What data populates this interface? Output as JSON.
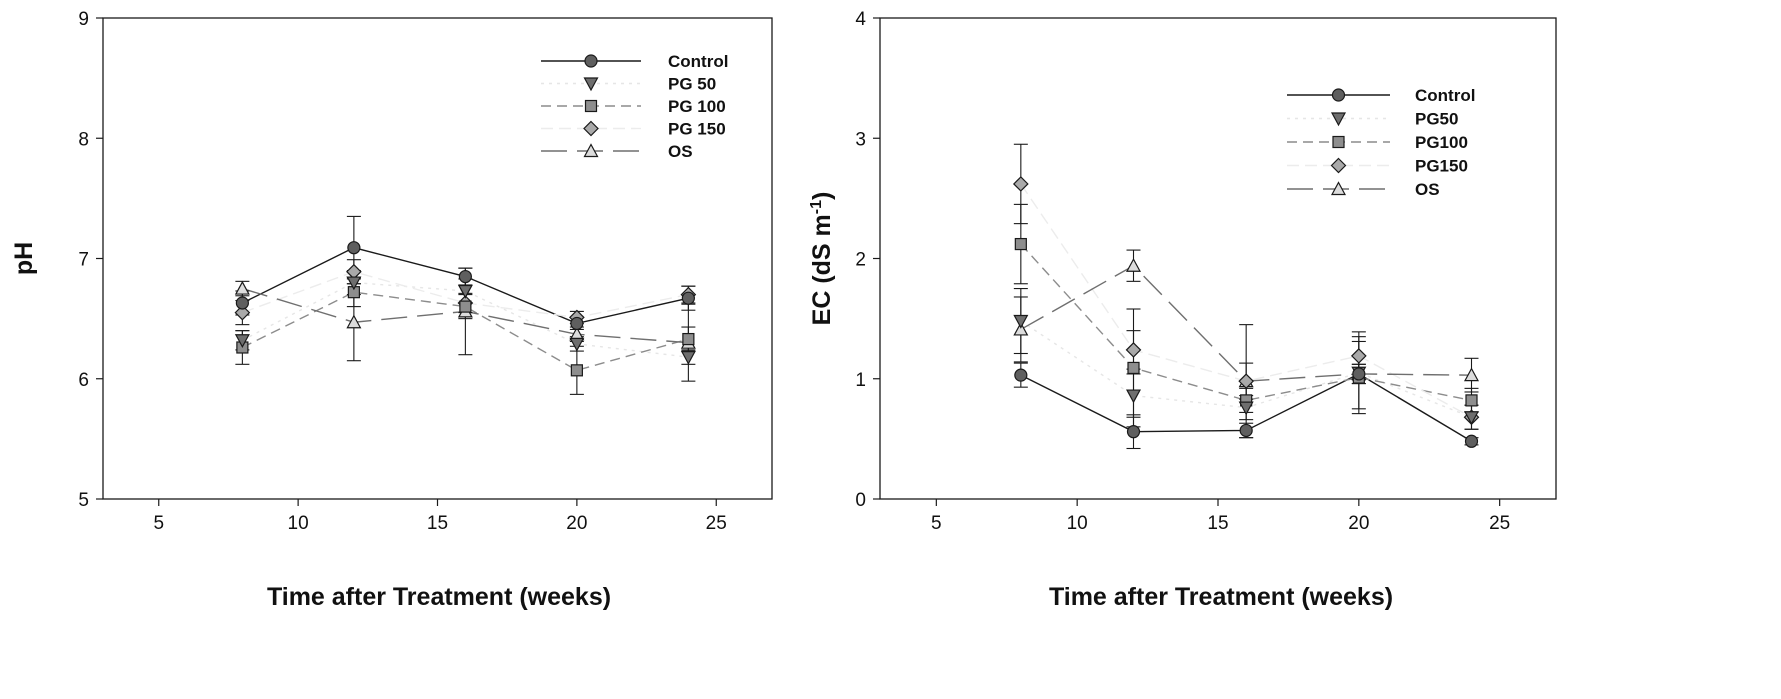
{
  "chart_data": [
    {
      "type": "line",
      "title": "",
      "xlabel": "Time after Treatment (weeks)",
      "ylabel": "pH",
      "ylabel_sup": "",
      "ylabel_suffix": "",
      "xlim": [
        3,
        27
      ],
      "ylim": [
        5,
        9
      ],
      "xticks": [
        "5",
        "10",
        "15",
        "20",
        "25"
      ],
      "yticks": [
        "5",
        "6",
        "7",
        "8",
        "9"
      ],
      "legend_position": "top-right",
      "x": [
        8,
        12,
        16,
        20,
        24
      ],
      "series": [
        {
          "name": "Control",
          "marker": "circle",
          "values": [
            6.63,
            7.09,
            6.85,
            6.46,
            6.67
          ],
          "err": [
            0.1,
            0.26,
            0.07,
            0.05,
            0.1
          ]
        },
        {
          "name": "PG 50",
          "marker": "triangle-down",
          "values": [
            6.32,
            6.8,
            6.73,
            6.29,
            6.18
          ],
          "err": [
            0.08,
            0.1,
            0.1,
            0.06,
            0.06
          ]
        },
        {
          "name": "PG 100",
          "marker": "square",
          "values": [
            6.26,
            6.72,
            6.6,
            6.07,
            6.33
          ],
          "err": [
            0.14,
            0.12,
            0.1,
            0.2,
            0.1
          ]
        },
        {
          "name": "PG 150",
          "marker": "diamond",
          "values": [
            6.55,
            6.89,
            6.63,
            6.51,
            6.7
          ],
          "err": [
            0.1,
            0.1,
            0.08,
            0.05,
            0.07
          ]
        },
        {
          "name": "OS",
          "marker": "triangle-up",
          "values": [
            6.75,
            6.47,
            6.56,
            6.37,
            6.3
          ],
          "err": [
            0.06,
            0.32,
            0.36,
            0.06,
            0.32
          ]
        }
      ]
    },
    {
      "type": "line",
      "title": "",
      "xlabel": "Time after Treatment (weeks)",
      "ylabel": "EC (dS m",
      "ylabel_sup": "-1",
      "ylabel_suffix": ")",
      "xlim": [
        3,
        27
      ],
      "ylim": [
        0,
        4
      ],
      "xticks": [
        "5",
        "10",
        "15",
        "20",
        "25"
      ],
      "yticks": [
        "0",
        "1",
        "2",
        "3",
        "4"
      ],
      "legend_position": "top-right",
      "x": [
        8,
        12,
        16,
        20,
        24
      ],
      "series": [
        {
          "name": "Control",
          "marker": "circle",
          "values": [
            1.03,
            0.56,
            0.57,
            1.04,
            0.48
          ],
          "err": [
            0.1,
            0.14,
            0.06,
            0.08,
            0.03
          ]
        },
        {
          "name": "PG50",
          "marker": "triangle-down",
          "values": [
            1.48,
            0.86,
            0.76,
            1.05,
            0.68
          ],
          "err": [
            0.27,
            0.18,
            0.1,
            0.3,
            0.1
          ]
        },
        {
          "name": "PG100",
          "marker": "square",
          "values": [
            2.12,
            1.09,
            0.82,
            1.01,
            0.82
          ],
          "err": [
            0.33,
            0.49,
            0.1,
            0.3,
            0.1
          ]
        },
        {
          "name": "PG150",
          "marker": "diamond",
          "values": [
            2.62,
            1.24,
            0.98,
            1.19,
            0.68
          ],
          "err": [
            0.33,
            0.16,
            0.15,
            0.2,
            0.1
          ]
        },
        {
          "name": "OS",
          "marker": "triangle-up",
          "values": [
            1.41,
            1.94,
            0.98,
            1.04,
            1.03
          ],
          "err": [
            0.27,
            0.13,
            0.47,
            0.08,
            0.14
          ]
        }
      ]
    }
  ]
}
